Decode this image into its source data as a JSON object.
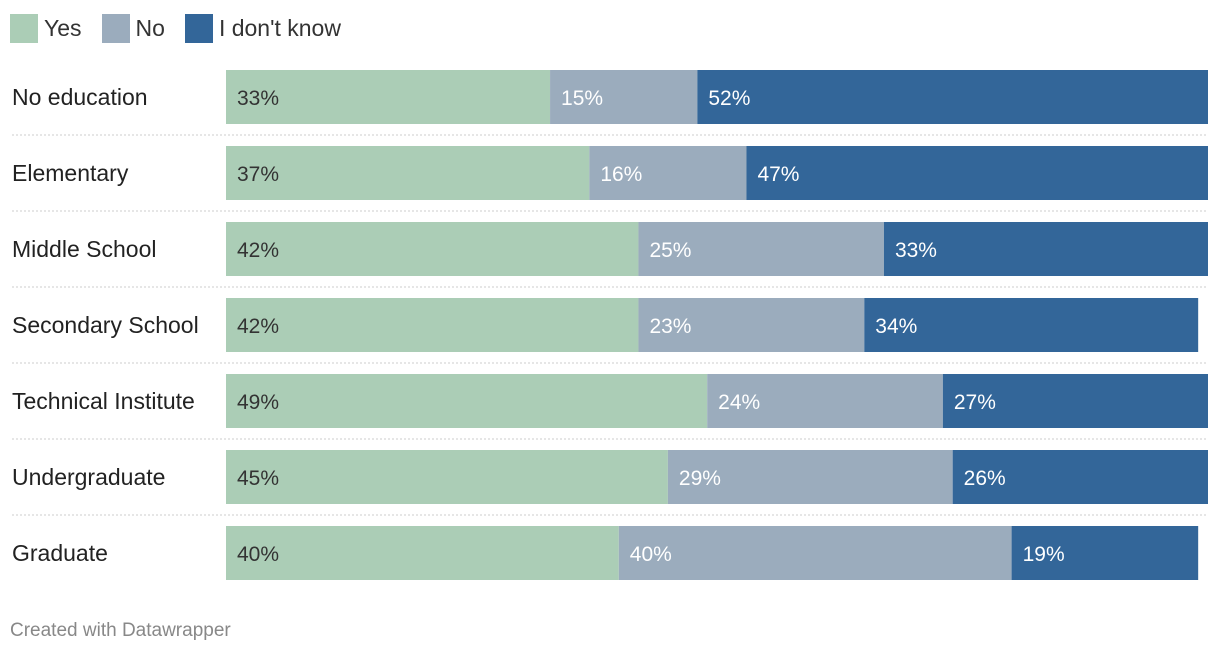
{
  "colors": {
    "yes": "#abcdb6",
    "no": "#9bacbd",
    "idk": "#336699"
  },
  "legend": [
    {
      "label": "Yes",
      "color": "#abcdb6"
    },
    {
      "label": "No",
      "color": "#9bacbd"
    },
    {
      "label": "I don't know",
      "color": "#336699"
    }
  ],
  "footer": "Created with Datawrapper",
  "chart_data": {
    "type": "bar",
    "orientation": "horizontal",
    "stacked": true,
    "unit": "%",
    "legend_position": "top-left",
    "categories": [
      "No education",
      "Elementary",
      "Middle School",
      "Secondary School",
      "Technical Institute",
      "Undergraduate",
      "Graduate"
    ],
    "series": [
      {
        "name": "Yes",
        "values": [
          33,
          37,
          42,
          42,
          49,
          45,
          40
        ]
      },
      {
        "name": "No",
        "values": [
          15,
          16,
          25,
          23,
          24,
          29,
          40
        ]
      },
      {
        "name": "I don't know",
        "values": [
          52,
          47,
          33,
          34,
          27,
          26,
          19
        ]
      }
    ]
  }
}
